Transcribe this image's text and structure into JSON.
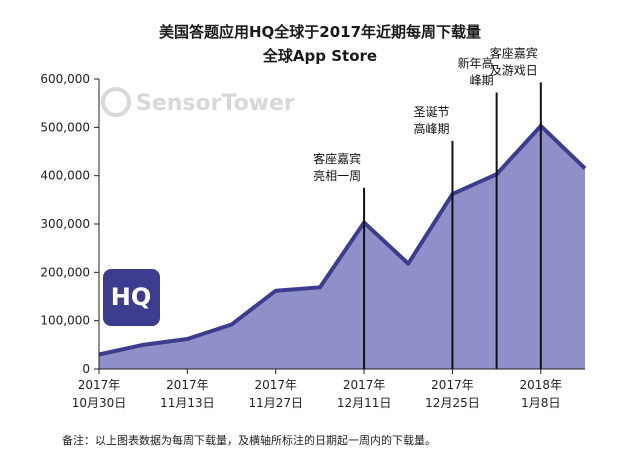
{
  "chart_data": {
    "type": "area",
    "title": "美国答题应用HQ全球于2017年近期每周下载量",
    "subtitle": "全球App Store",
    "ylim": [
      0,
      600000
    ],
    "y_ticks": [
      {
        "value": 0,
        "label": "0"
      },
      {
        "value": 100000,
        "label": "100,000"
      },
      {
        "value": 200000,
        "label": "200,000"
      },
      {
        "value": 300000,
        "label": "300,000"
      },
      {
        "value": 400000,
        "label": "400,000"
      },
      {
        "value": 500000,
        "label": "500,000"
      },
      {
        "value": 600000,
        "label": "600,000"
      }
    ],
    "x_ticks": [
      {
        "date": "2017-10-30",
        "line1": "2017年",
        "line2": "10月30日"
      },
      {
        "date": "2017-11-13",
        "line1": "2017年",
        "line2": "11月13日"
      },
      {
        "date": "2017-11-27",
        "line1": "2017年",
        "line2": "11月27日"
      },
      {
        "date": "2017-12-11",
        "line1": "2017年",
        "line2": "12月11日"
      },
      {
        "date": "2017-12-25",
        "line1": "2017年",
        "line2": "12月25日"
      },
      {
        "date": "2018-01-08",
        "line1": "2018年",
        "line2": "1月8日"
      }
    ],
    "series": [
      {
        "color": "#8f90c9",
        "line_color": "#3d3d8f",
        "points": [
          {
            "x": "2017-10-30",
            "y": 30000
          },
          {
            "x": "2017-11-06",
            "y": 50000
          },
          {
            "x": "2017-11-13",
            "y": 62000
          },
          {
            "x": "2017-11-20",
            "y": 92000
          },
          {
            "x": "2017-11-27",
            "y": 162000
          },
          {
            "x": "2017-12-04",
            "y": 169000
          },
          {
            "x": "2017-12-11",
            "y": 303000
          },
          {
            "x": "2017-12-18",
            "y": 218000
          },
          {
            "x": "2017-12-25",
            "y": 362000
          },
          {
            "x": "2018-01-01",
            "y": 403000
          },
          {
            "x": "2018-01-08",
            "y": 503000
          },
          {
            "x": "2018-01-15",
            "y": 415000
          }
        ]
      }
    ],
    "annotations": [
      {
        "x": "2017-12-11",
        "top": 375000,
        "lines": [
          "客座嘉宾",
          "亮相一周"
        ]
      },
      {
        "x": "2017-12-25",
        "top": 472000,
        "lines": [
          "圣诞节",
          "高峰期"
        ]
      },
      {
        "x": "2018-01-01",
        "top": 572000,
        "lines": [
          "新年高",
          "峰期"
        ]
      },
      {
        "x": "2018-01-08",
        "top": 593000,
        "lines": [
          "客座嘉宾",
          "及游戏日"
        ]
      }
    ],
    "note": "备注：以上图表数据为每周下载量，及横轴所标注的日期起一周内的下载量。",
    "watermark": "SensorTower",
    "logo_text": "HQ",
    "logo_color": "#3d3d8f",
    "grid": false,
    "legend": "none"
  }
}
